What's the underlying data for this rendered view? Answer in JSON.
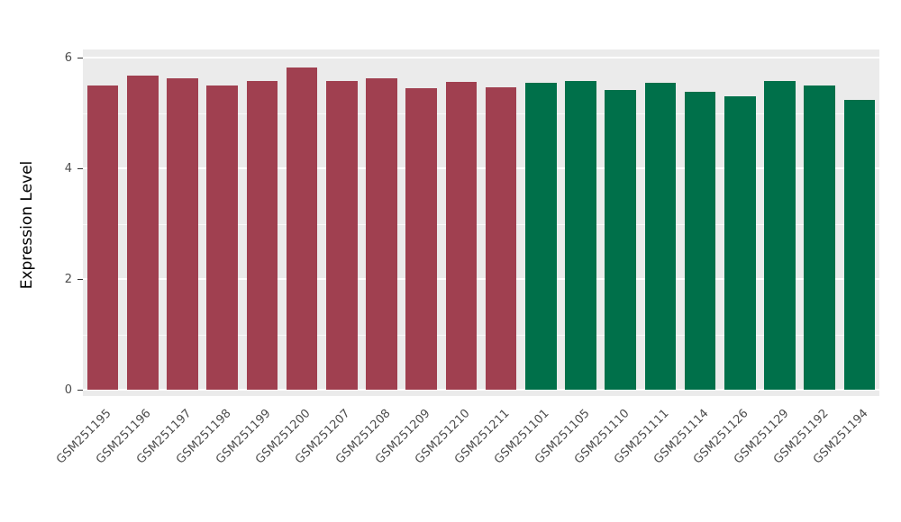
{
  "chart_data": {
    "type": "bar",
    "title": "",
    "xlabel": "",
    "ylabel": "Expression Level",
    "ylim": [
      0,
      6
    ],
    "yticks_major": [
      0,
      2,
      4,
      6
    ],
    "yticks_minor": [
      1,
      3,
      5
    ],
    "grid": true,
    "legend": "none",
    "panel_bg": "#ebebeb",
    "grid_color": "#ffffff",
    "categories": [
      "GSM251195",
      "GSM251196",
      "GSM251197",
      "GSM251198",
      "GSM251199",
      "GSM251200",
      "GSM251207",
      "GSM251208",
      "GSM251209",
      "GSM251210",
      "GSM251211",
      "GSM251101",
      "GSM251105",
      "GSM251110",
      "GSM251111",
      "GSM251114",
      "GSM251126",
      "GSM251129",
      "GSM251192",
      "GSM251194"
    ],
    "values": [
      5.5,
      5.68,
      5.63,
      5.5,
      5.57,
      5.82,
      5.57,
      5.63,
      5.45,
      5.56,
      5.46,
      5.54,
      5.58,
      5.42,
      5.54,
      5.39,
      5.3,
      5.57,
      5.5,
      5.24
    ],
    "groups": [
      "group1",
      "group1",
      "group1",
      "group1",
      "group1",
      "group1",
      "group1",
      "group1",
      "group1",
      "group1",
      "group1",
      "group2",
      "group2",
      "group2",
      "group2",
      "group2",
      "group2",
      "group2",
      "group2",
      "group2"
    ],
    "group_colors": {
      "group1": "#a04050",
      "group2": "#00704a"
    },
    "axis_text_color": "#4d4d4d"
  }
}
